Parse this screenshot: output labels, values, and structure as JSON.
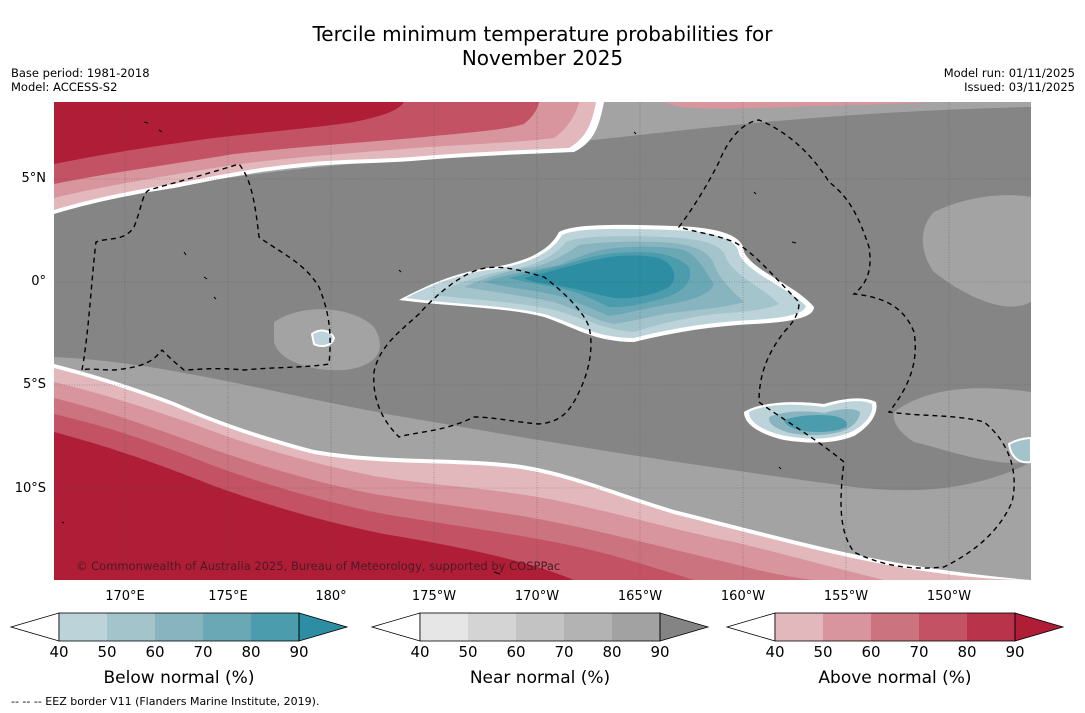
{
  "title_line1": "Tercile minimum temperature probabilities for",
  "title_line2": "November 2025",
  "meta": {
    "base_period": "Base period: 1981-2018",
    "model": "Model: ACCESS-S2",
    "model_run": "Model run: 01/11/2025",
    "issued": "Issued: 03/11/2025"
  },
  "map": {
    "copyright": "© Commonwealth of Australia 2025, Bureau of Meteorology, supported by COSPPac",
    "lat_labels": [
      "5°N",
      "0°",
      "5°S",
      "10°S"
    ],
    "lon_labels": [
      "170°E",
      "175°E",
      "180°",
      "175°W",
      "170°W",
      "165°W",
      "160°W",
      "155°W",
      "150°W"
    ]
  },
  "colorbars": [
    {
      "label": "Below normal (%)",
      "ticks": [
        "40",
        "50",
        "60",
        "70",
        "80",
        "90"
      ],
      "colors": [
        "#bcd3da",
        "#a4c4cb",
        "#87b4bf",
        "#6aa8b5",
        "#4b9cad",
        "#2c8da3"
      ]
    },
    {
      "label": "Near normal (%)",
      "ticks": [
        "40",
        "50",
        "60",
        "70",
        "80",
        "90"
      ],
      "colors": [
        "#e6e6e6",
        "#d4d4d4",
        "#c3c3c3",
        "#b3b3b3",
        "#a2a2a2",
        "#848484"
      ]
    },
    {
      "label": "Above normal (%)",
      "ticks": [
        "40",
        "50",
        "60",
        "70",
        "80",
        "90"
      ],
      "colors": [
        "#e2b8bd",
        "#d8959d",
        "#cc7380",
        "#c25264",
        "#b9344b",
        "#b01d37"
      ]
    }
  ],
  "footer": "-- -- -- EEZ border V11 (Flanders Marine Institute, 2019)."
}
